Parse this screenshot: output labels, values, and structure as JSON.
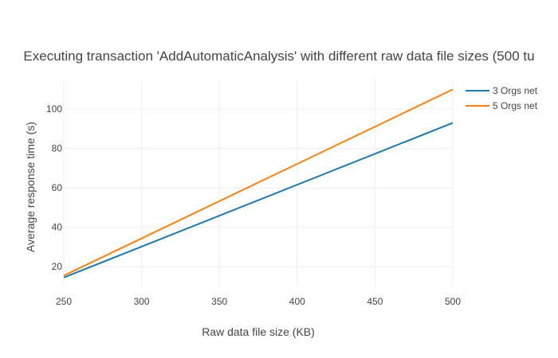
{
  "chart_data": {
    "type": "line",
    "title": "Executing transaction 'AddAutomaticAnalysis' with different raw data file sizes (500 tu",
    "xlabel": "Raw data file size (KB)",
    "ylabel": "Average response time (s)",
    "xlim": [
      250,
      500
    ],
    "ylim": [
      10,
      115
    ],
    "x_ticks": [
      250,
      300,
      350,
      400,
      450,
      500
    ],
    "y_ticks": [
      20,
      40,
      60,
      80,
      100
    ],
    "grid": true,
    "legend_position": "top-right",
    "series": [
      {
        "name": "3 Orgs net",
        "color": "#1f77b4",
        "x": [
          250,
          500
        ],
        "values": [
          14.5,
          93
        ]
      },
      {
        "name": "5 Orgs net",
        "color": "#ff7f0e",
        "x": [
          250,
          500
        ],
        "values": [
          15.5,
          110
        ]
      }
    ]
  }
}
